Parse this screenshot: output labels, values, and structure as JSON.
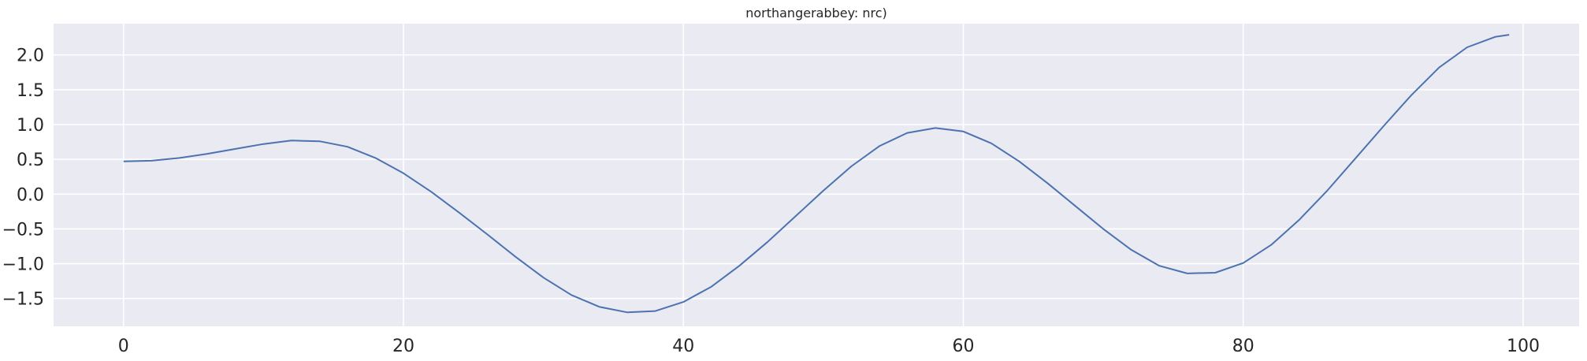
{
  "chart_data": {
    "type": "line",
    "title": "northangerabbey: nrc)",
    "xlabel": "",
    "ylabel": "",
    "xlim": [
      -5,
      104
    ],
    "ylim": [
      -1.9,
      2.45
    ],
    "xticks": [
      0,
      20,
      40,
      60,
      80,
      100
    ],
    "xtick_labels": [
      "0",
      "20",
      "40",
      "60",
      "80",
      "100"
    ],
    "yticks": [
      -1.5,
      -1.0,
      -0.5,
      0.0,
      0.5,
      1.0,
      1.5,
      2.0
    ],
    "ytick_labels": [
      "−1.5",
      "−1.0",
      "−0.5",
      "0.0",
      "0.5",
      "1.0",
      "1.5",
      "2.0"
    ],
    "grid": true,
    "background": "#eaeaf2",
    "gridColor": "#ffffff",
    "series": [
      {
        "color": "#4c72b0",
        "points": [
          [
            0,
            0.47
          ],
          [
            2,
            0.48
          ],
          [
            4,
            0.52
          ],
          [
            6,
            0.58
          ],
          [
            8,
            0.65
          ],
          [
            10,
            0.72
          ],
          [
            12,
            0.77
          ],
          [
            14,
            0.76
          ],
          [
            16,
            0.68
          ],
          [
            18,
            0.52
          ],
          [
            20,
            0.3
          ],
          [
            22,
            0.03
          ],
          [
            24,
            -0.27
          ],
          [
            26,
            -0.58
          ],
          [
            28,
            -0.9
          ],
          [
            30,
            -1.2
          ],
          [
            32,
            -1.45
          ],
          [
            34,
            -1.62
          ],
          [
            36,
            -1.7
          ],
          [
            38,
            -1.68
          ],
          [
            40,
            -1.55
          ],
          [
            42,
            -1.33
          ],
          [
            44,
            -1.03
          ],
          [
            46,
            -0.69
          ],
          [
            48,
            -0.32
          ],
          [
            50,
            0.05
          ],
          [
            52,
            0.4
          ],
          [
            54,
            0.69
          ],
          [
            56,
            0.88
          ],
          [
            58,
            0.95
          ],
          [
            60,
            0.9
          ],
          [
            62,
            0.73
          ],
          [
            64,
            0.47
          ],
          [
            66,
            0.16
          ],
          [
            68,
            -0.17
          ],
          [
            70,
            -0.5
          ],
          [
            72,
            -0.8
          ],
          [
            74,
            -1.03
          ],
          [
            76,
            -1.14
          ],
          [
            78,
            -1.13
          ],
          [
            80,
            -0.99
          ],
          [
            82,
            -0.73
          ],
          [
            84,
            -0.37
          ],
          [
            86,
            0.05
          ],
          [
            88,
            0.51
          ],
          [
            90,
            0.97
          ],
          [
            92,
            1.42
          ],
          [
            94,
            1.82
          ],
          [
            96,
            2.11
          ],
          [
            98,
            2.26
          ],
          [
            99,
            2.29
          ]
        ]
      }
    ]
  }
}
